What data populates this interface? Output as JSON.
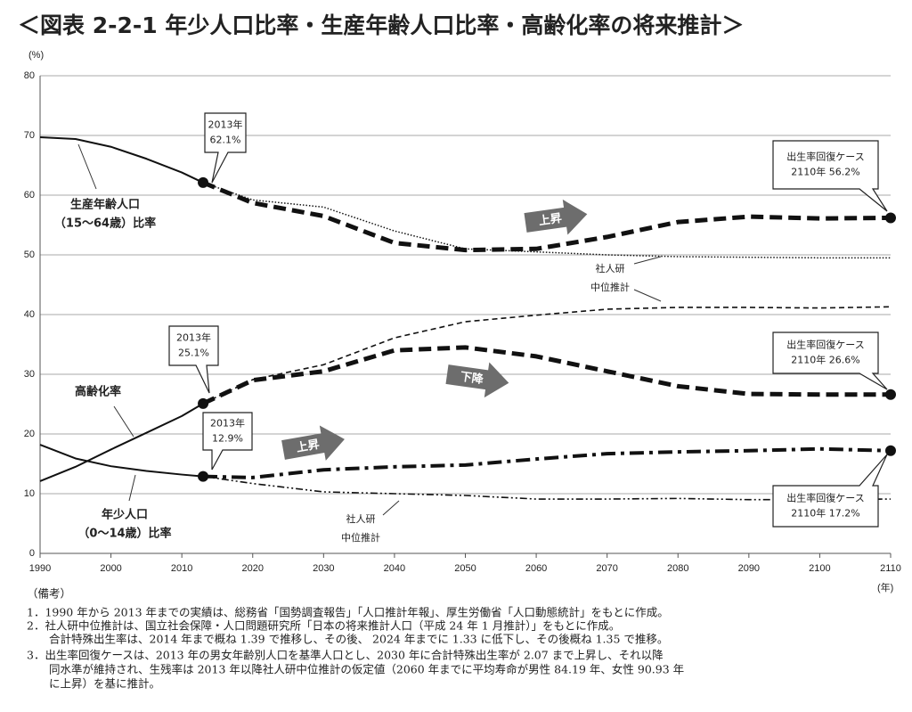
{
  "chart_data": {
    "type": "line",
    "title": "＜図表 2-2-1 年少人口比率・生産年齢人口比率・高齢化率の将来推計＞",
    "y_unit": "(%)",
    "x_unit": "(年)",
    "xlim": [
      1990,
      2110
    ],
    "xticks": [
      1990,
      2000,
      2010,
      2020,
      2030,
      2040,
      2050,
      2060,
      2070,
      2080,
      2090,
      2100,
      2110
    ],
    "ylim": [
      0,
      80
    ],
    "yticks": [
      0,
      10,
      20,
      30,
      40,
      50,
      60,
      70,
      80
    ],
    "grid": true,
    "series": [
      {
        "color": "#111",
        "style": "solid",
        "x": [
          1990,
          1995,
          2000,
          2005,
          2010,
          2013
        ],
        "values": [
          69.7,
          69.4,
          68.1,
          66.1,
          63.8,
          62.1
        ]
      },
      {
        "color": "#111",
        "style": "dotted",
        "x": [
          2013,
          2020,
          2030,
          2040,
          2050,
          2060,
          2070,
          2080,
          2090,
          2100,
          2110
        ],
        "values": [
          62.1,
          59.2,
          58.0,
          54.0,
          51.0,
          50.5,
          50.0,
          49.7,
          49.6,
          49.5,
          49.5
        ]
      },
      {
        "color": "#111",
        "style": "heavy-dashed",
        "x": [
          2013,
          2020,
          2030,
          2040,
          2050,
          2060,
          2070,
          2080,
          2090,
          2100,
          2110
        ],
        "values": [
          62.1,
          58.7,
          56.5,
          52.0,
          50.8,
          51.0,
          53.0,
          55.5,
          56.4,
          56.1,
          56.2
        ]
      },
      {
        "color": "#111",
        "style": "solid",
        "x": [
          1990,
          1995,
          2000,
          2005,
          2010,
          2013
        ],
        "values": [
          12.1,
          14.5,
          17.4,
          20.2,
          23.0,
          25.1
        ]
      },
      {
        "color": "#111",
        "style": "dashed",
        "x": [
          2013,
          2020,
          2030,
          2040,
          2050,
          2060,
          2070,
          2080,
          2090,
          2100,
          2110
        ],
        "values": [
          25.1,
          29.1,
          31.6,
          36.1,
          38.8,
          39.9,
          40.9,
          41.2,
          41.2,
          41.1,
          41.3
        ]
      },
      {
        "color": "#111",
        "style": "heavy-dashed",
        "x": [
          2013,
          2020,
          2030,
          2040,
          2050,
          2060,
          2070,
          2080,
          2090,
          2100,
          2110
        ],
        "values": [
          25.1,
          29.0,
          30.5,
          34.0,
          34.5,
          33.0,
          30.5,
          28.0,
          26.7,
          26.6,
          26.6
        ]
      },
      {
        "color": "#111",
        "style": "solid",
        "x": [
          1990,
          1995,
          2000,
          2005,
          2010,
          2013
        ],
        "values": [
          18.2,
          15.9,
          14.6,
          13.8,
          13.2,
          12.9
        ]
      },
      {
        "color": "#111",
        "style": "dash-dot-dot",
        "x": [
          2013,
          2020,
          2030,
          2040,
          2050,
          2060,
          2070,
          2080,
          2090,
          2100,
          2110
        ],
        "values": [
          12.9,
          11.7,
          10.3,
          10.0,
          9.7,
          9.1,
          9.1,
          9.2,
          9.0,
          9.0,
          9.1
        ]
      },
      {
        "color": "#111",
        "style": "heavy-dash-dot",
        "x": [
          2013,
          2020,
          2030,
          2040,
          2050,
          2060,
          2070,
          2080,
          2090,
          2100,
          2110
        ],
        "values": [
          12.9,
          12.7,
          14.0,
          14.5,
          14.8,
          15.8,
          16.7,
          17.0,
          17.2,
          17.5,
          17.2
        ]
      }
    ],
    "callouts": [
      {
        "lines": [
          "2013年",
          "62.1%"
        ]
      },
      {
        "lines": [
          "2013年",
          "25.1%"
        ]
      },
      {
        "lines": [
          "2013年",
          "12.9%"
        ]
      },
      {
        "lines": [
          "出生率回復ケース",
          "2110年 56.2%"
        ]
      },
      {
        "lines": [
          "出生率回復ケース",
          "2110年 26.6%"
        ]
      },
      {
        "lines": [
          "出生率回復ケース",
          "2110年 17.2%"
        ]
      }
    ],
    "labels": [
      {
        "lines": [
          "生産年齢人口",
          "（15～64歳）比率"
        ]
      },
      {
        "lines": [
          "高齢化率"
        ]
      },
      {
        "lines": [
          "年少人口",
          "（0～14歳）比率"
        ]
      },
      {
        "lines": [
          "社人研",
          "中位推計"
        ]
      },
      {
        "lines": [
          "社人研",
          "中位推計"
        ]
      }
    ],
    "trend_arrows": [
      "上昇",
      "下降",
      "上昇"
    ]
  },
  "notes": {
    "heading": "（備考）",
    "lines": [
      "1．1990 年から 2013 年までの実績は、総務省「国勢調査報告」「人口推計年報」、厚生労働省「人口動態統計」をもとに作成。",
      "2．社人研中位推計は、国立社会保障・人口問題研究所「日本の将来推計人口（平成 24 年 1 月推計）」をもとに作成。",
      "　　合計特殊出生率は、2014 年まで概ね 1.39 で推移し、その後、 2024 年までに 1.33 に低下し、その後概ね 1.35 で推移。",
      "3．出生率回復ケースは、2013 年の男女年齢別人口を基準人口とし、2030 年に合計特殊出生率が 2.07 まで上昇し、それ以降",
      "　　同水準が維持され、生残率は 2013 年以降社人研中位推計の仮定値（2060 年までに平均寿命が男性 84.19 年、女性 90.93 年",
      "　　に上昇）を基に推計。"
    ]
  }
}
